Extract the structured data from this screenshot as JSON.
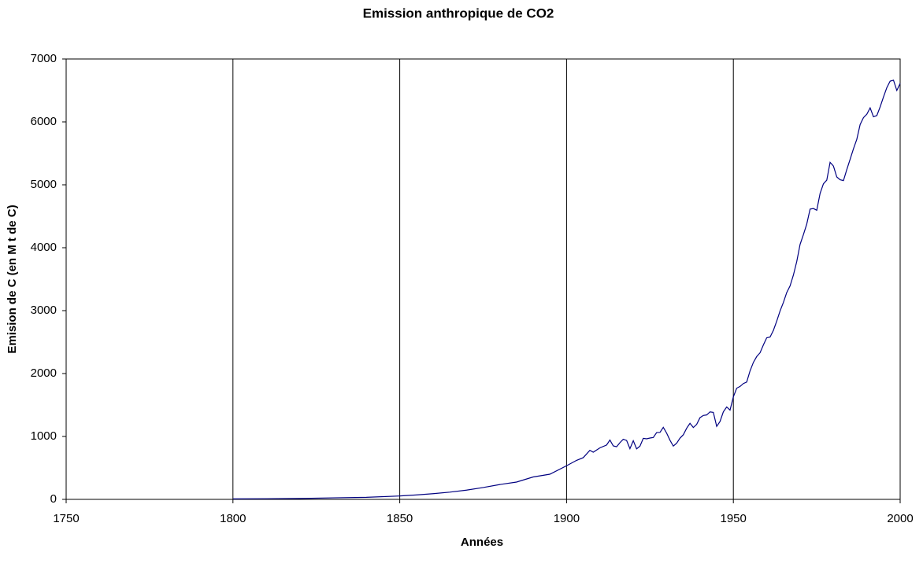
{
  "chart_data": {
    "type": "line",
    "title": "Emission anthropique de CO2",
    "x_label": "Années",
    "y_label": "Emision de C (en M t de C)",
    "xlim": [
      1750,
      2000
    ],
    "xticks": [
      1750,
      1800,
      1850,
      1900,
      1950,
      2000
    ],
    "ylim": [
      0,
      7000
    ],
    "yticks": [
      0,
      1000,
      2000,
      3000,
      4000,
      5000,
      6000,
      7000
    ],
    "x_grid": true,
    "x": [
      1800,
      1810,
      1820,
      1830,
      1840,
      1850,
      1855,
      1860,
      1865,
      1870,
      1875,
      1880,
      1885,
      1890,
      1895,
      1900,
      1903,
      1905,
      1907,
      1908,
      1910,
      1912,
      1913,
      1914,
      1915,
      1916,
      1917,
      1918,
      1919,
      1920,
      1921,
      1922,
      1923,
      1924,
      1925,
      1926,
      1927,
      1928,
      1929,
      1930,
      1931,
      1932,
      1933,
      1934,
      1935,
      1936,
      1937,
      1938,
      1939,
      1940,
      1941,
      1942,
      1943,
      1944,
      1945,
      1946,
      1947,
      1948,
      1949,
      1950,
      1951,
      1952,
      1953,
      1954,
      1955,
      1956,
      1957,
      1958,
      1959,
      1960,
      1961,
      1962,
      1963,
      1964,
      1965,
      1966,
      1967,
      1968,
      1969,
      1970,
      1971,
      1972,
      1973,
      1974,
      1975,
      1976,
      1977,
      1978,
      1979,
      1980,
      1981,
      1982,
      1983,
      1984,
      1985,
      1986,
      1987,
      1988,
      1989,
      1990,
      1991,
      1992,
      1993,
      1994,
      1995,
      1996,
      1997,
      1998,
      1999,
      2000
    ],
    "series": [
      {
        "name": "Emission",
        "color": "#000080",
        "values": [
          8,
          10,
          14,
          24,
          33,
          54,
          70,
          91,
          115,
          147,
          188,
          236,
          275,
          356,
          400,
          534,
          620,
          663,
          780,
          750,
          819,
          864,
          943,
          850,
          836,
          902,
          955,
          936,
          806,
          932,
          803,
          845,
          970,
          963,
          975,
          983,
          1062,
          1065,
          1145,
          1053,
          940,
          847,
          893,
          973,
          1027,
          1130,
          1209,
          1142,
          1192,
          1299,
          1334,
          1342,
          1391,
          1383,
          1160,
          1238,
          1392,
          1469,
          1419,
          1630,
          1767,
          1795,
          1841,
          1865,
          2042,
          2177,
          2270,
          2330,
          2454,
          2569,
          2580,
          2686,
          2833,
          2995,
          3130,
          3288,
          3393,
          3566,
          3780,
          4053,
          4208,
          4376,
          4614,
          4623,
          4596,
          4864,
          5016,
          5074,
          5357,
          5298,
          5125,
          5080,
          5067,
          5241,
          5405,
          5573,
          5723,
          5958,
          6068,
          6122,
          6223,
          6081,
          6100,
          6238,
          6396,
          6544,
          6648,
          6663,
          6500,
          6611
        ]
      }
    ]
  }
}
